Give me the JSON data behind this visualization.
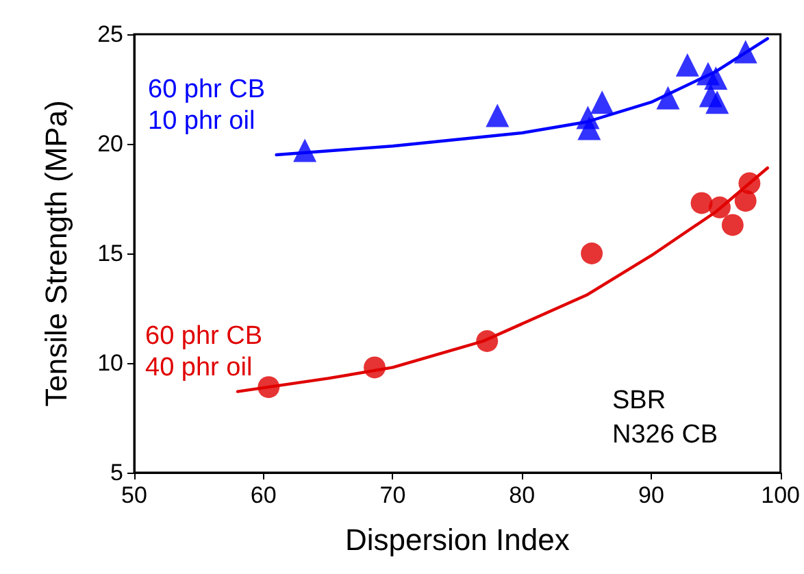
{
  "chart_data": {
    "type": "scatter",
    "xlabel": "Dispersion Index",
    "ylabel": "Tensile Strength (MPa)",
    "xlim": [
      50,
      100
    ],
    "xticks": [
      50,
      60,
      70,
      80,
      90,
      100
    ],
    "ylim": [
      5,
      25
    ],
    "yticks": [
      5,
      10,
      15,
      20,
      25
    ],
    "grid": false,
    "legend": false,
    "annotations": [
      "SBR",
      "N326 CB"
    ],
    "series": [
      {
        "name": "60 phr CB\n10 phr oil",
        "color": "#0000ff",
        "marker": "triangle",
        "x": [
          63.2,
          78.1,
          85.1,
          85.2,
          86.2,
          91.3,
          92.8,
          94.4,
          94.6,
          95.0,
          95.1,
          97.3
        ],
        "values": [
          19.7,
          21.3,
          21.2,
          20.7,
          21.9,
          22.1,
          23.6,
          23.2,
          22.2,
          23.0,
          21.9,
          24.2
        ]
      },
      {
        "name": "60 phr CB\n40 phr oil",
        "color": "#e00000",
        "marker": "circle",
        "x": [
          60.4,
          68.6,
          77.3,
          85.4,
          93.9,
          95.3,
          96.3,
          97.3,
          97.6
        ],
        "values": [
          8.9,
          9.8,
          11.0,
          15.0,
          17.3,
          17.1,
          16.3,
          17.4,
          18.2
        ]
      },
      {
        "type": "line",
        "color": "#0000ff",
        "marker": "none",
        "x": [
          61,
          70,
          80,
          85,
          90,
          95,
          99
        ],
        "values": [
          19.5,
          19.9,
          20.5,
          21.0,
          21.9,
          23.3,
          24.8
        ]
      },
      {
        "type": "line",
        "color": "#e00000",
        "marker": "none",
        "x": [
          58,
          65,
          70,
          77,
          85,
          90,
          95,
          99
        ],
        "values": [
          8.7,
          9.3,
          9.8,
          11.0,
          13.1,
          14.9,
          16.9,
          18.9
        ]
      }
    ]
  }
}
